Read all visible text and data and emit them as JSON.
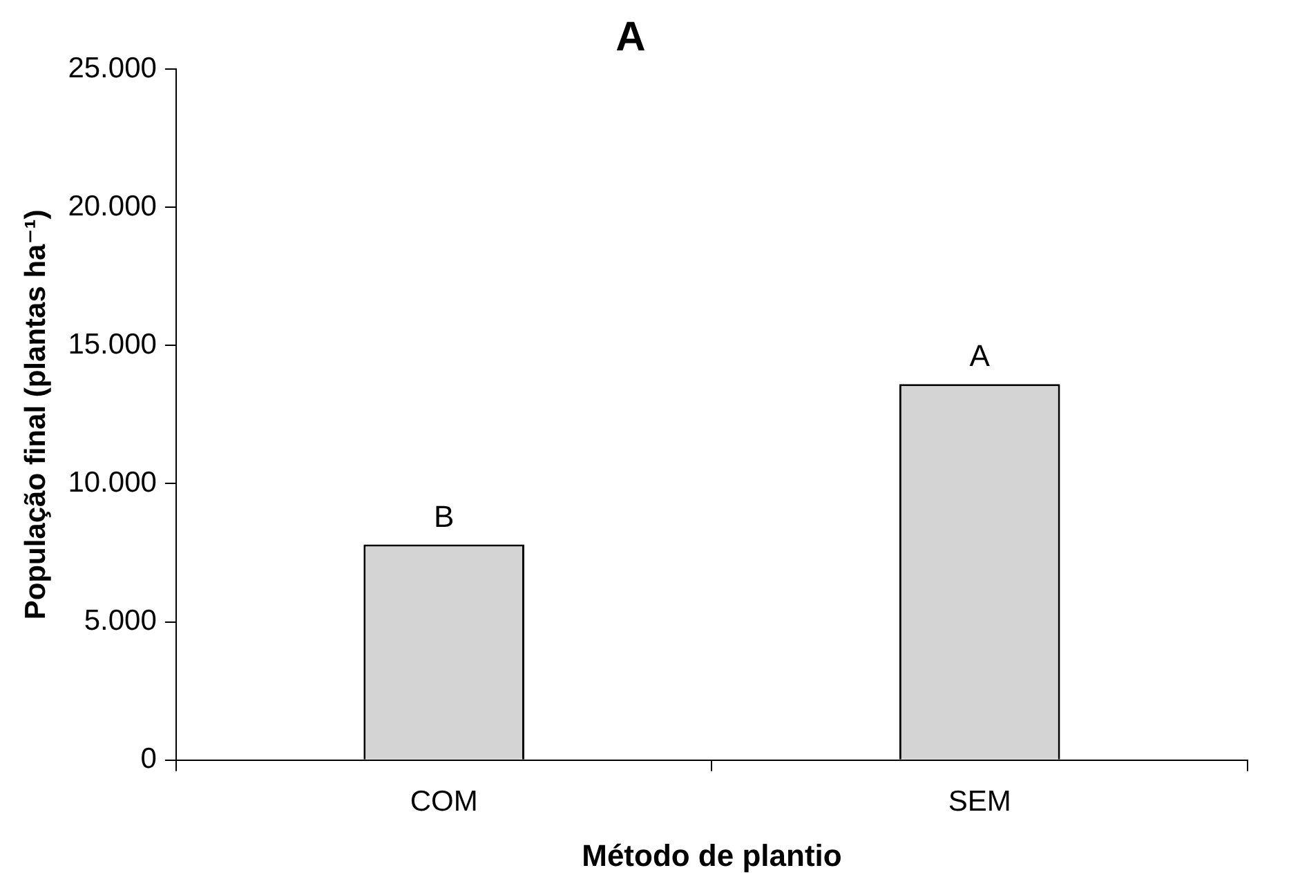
{
  "chart_data": {
    "type": "bar",
    "title": "A",
    "xlabel": "Método de plantio",
    "ylabel": "População final (plantas ha⁻¹)",
    "categories": [
      "COM",
      "SEM"
    ],
    "series": [
      {
        "color": "#d4d4d4",
        "values": [
          7800,
          13600
        ],
        "value_labels": [
          "B",
          "A"
        ]
      }
    ],
    "ylim": [
      0,
      25000
    ],
    "yticks": [
      {
        "value": 0,
        "label": "0"
      },
      {
        "value": 5000,
        "label": "5.000"
      },
      {
        "value": 10000,
        "label": "10.000"
      },
      {
        "value": 15000,
        "label": "15.000"
      },
      {
        "value": 20000,
        "label": "20.000"
      },
      {
        "value": 25000,
        "label": "25.000"
      }
    ],
    "grid": false,
    "legend": false
  }
}
